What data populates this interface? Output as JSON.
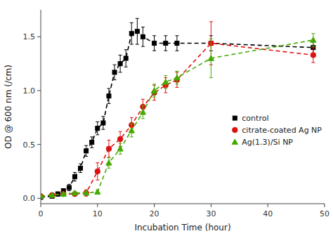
{
  "chart_data": {
    "type": "line",
    "xlabel": "Incubation Time (hour)",
    "ylabel": "OD @ 600 nm (/cm)",
    "xlim": [
      0,
      50
    ],
    "ylim": [
      -0.05,
      1.75
    ],
    "xticks": [
      0,
      10,
      20,
      30,
      40,
      50
    ],
    "yticks": [
      {
        "value": 0.0,
        "label": "0.0"
      },
      0.5,
      {
        "value": 1.0,
        "label": "1.0"
      },
      1.5
    ],
    "grid": false,
    "legend": "right",
    "series": [
      {
        "name": "control",
        "color": "#000000",
        "marker": "square",
        "line_style": "dashed",
        "x": [
          0,
          2,
          3,
          4,
          5,
          6,
          7,
          8,
          9,
          10,
          11,
          12,
          13,
          14,
          15,
          16,
          17,
          18,
          20,
          22,
          24,
          30,
          48
        ],
        "values": [
          0.01,
          0.02,
          0.04,
          0.07,
          0.1,
          0.2,
          0.28,
          0.44,
          0.52,
          0.65,
          0.7,
          0.95,
          1.17,
          1.25,
          1.3,
          1.53,
          1.55,
          1.5,
          1.44,
          1.44,
          1.44,
          1.44,
          1.4
        ],
        "errors": [
          0.01,
          0.01,
          0.02,
          0.02,
          0.03,
          0.04,
          0.04,
          0.05,
          0.05,
          0.06,
          0.06,
          0.07,
          0.07,
          0.08,
          0.08,
          0.1,
          0.12,
          0.09,
          0.07,
          0.07,
          0.07,
          0.07,
          0.06
        ]
      },
      {
        "name": "citrate-coated Ag NP",
        "color": "#dd1111",
        "marker": "circle",
        "line_style": "dashed",
        "x": [
          0,
          2,
          4,
          6,
          8,
          10,
          12,
          14,
          16,
          18,
          20,
          22,
          24,
          30,
          48
        ],
        "values": [
          0.02,
          0.03,
          0.04,
          0.04,
          0.05,
          0.25,
          0.46,
          0.55,
          0.68,
          0.85,
          0.98,
          1.05,
          1.1,
          1.44,
          1.33
        ],
        "errors": [
          0.01,
          0.01,
          0.01,
          0.01,
          0.03,
          0.08,
          0.08,
          0.07,
          0.07,
          0.07,
          0.07,
          0.07,
          0.07,
          0.2,
          0.07
        ]
      },
      {
        "name": "Ag(1.3)/Si NP",
        "color": "#44aa00",
        "marker": "triangle",
        "line_style": "dashed",
        "x": [
          0,
          2,
          4,
          6,
          8,
          10,
          12,
          14,
          16,
          18,
          20,
          22,
          24,
          30,
          48
        ],
        "values": [
          0.02,
          0.03,
          0.04,
          0.05,
          0.05,
          0.06,
          0.33,
          0.46,
          0.63,
          0.8,
          1.0,
          1.08,
          1.12,
          1.3,
          1.47
        ],
        "errors": [
          0.01,
          0.01,
          0.01,
          0.01,
          0.01,
          0.02,
          0.05,
          0.05,
          0.06,
          0.06,
          0.06,
          0.06,
          0.06,
          0.18,
          0.06
        ]
      }
    ]
  }
}
